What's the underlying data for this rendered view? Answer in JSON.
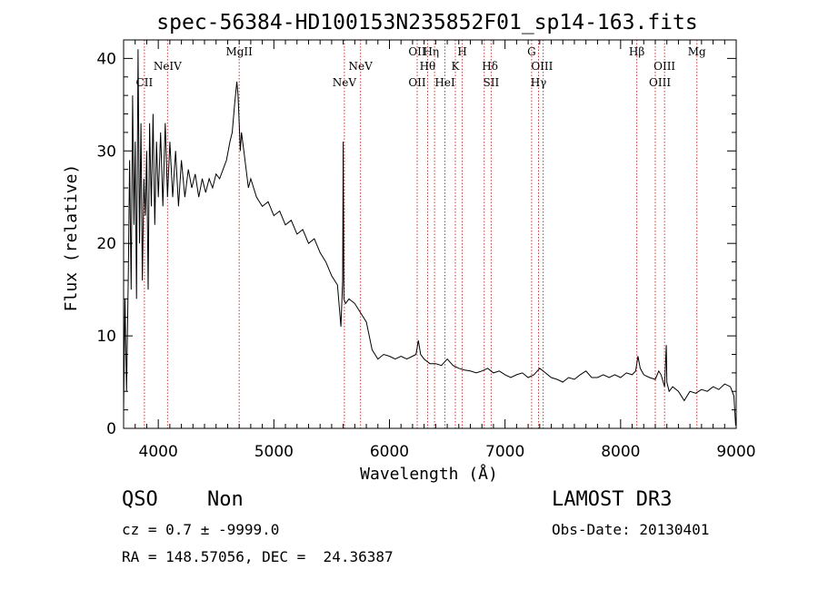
{
  "chart_data": {
    "type": "line",
    "title": "spec-56384-HD100153N235852F01_sp14-163.fits",
    "xlabel": "Wavelength (Å)",
    "ylabel": "Flux (relative)",
    "xlim": [
      3700,
      9000
    ],
    "ylim": [
      0,
      42
    ],
    "x_ticks": [
      4000,
      5000,
      6000,
      7000,
      8000,
      9000
    ],
    "y_ticks": [
      0,
      10,
      20,
      30,
      40
    ],
    "grid": false,
    "series": [
      {
        "name": "spectrum",
        "x": [
          3700,
          3712,
          3725,
          3740,
          3752,
          3765,
          3778,
          3790,
          3800,
          3812,
          3825,
          3838,
          3850,
          3862,
          3875,
          3888,
          3900,
          3912,
          3925,
          3940,
          3955,
          3970,
          3985,
          4000,
          4020,
          4040,
          4060,
          4080,
          4100,
          4125,
          4150,
          4175,
          4200,
          4230,
          4260,
          4290,
          4320,
          4350,
          4380,
          4410,
          4440,
          4470,
          4500,
          4530,
          4560,
          4590,
          4620,
          4640,
          4660,
          4680,
          4690,
          4700,
          4710,
          4720,
          4740,
          4760,
          4780,
          4800,
          4850,
          4900,
          4950,
          5000,
          5050,
          5100,
          5150,
          5200,
          5250,
          5300,
          5350,
          5400,
          5450,
          5500,
          5550,
          5580,
          5595,
          5600,
          5605,
          5620,
          5650,
          5700,
          5750,
          5800,
          5850,
          5900,
          5950,
          6000,
          6050,
          6100,
          6150,
          6200,
          6230,
          6250,
          6270,
          6300,
          6350,
          6400,
          6450,
          6500,
          6550,
          6600,
          6650,
          6700,
          6750,
          6800,
          6850,
          6900,
          6950,
          7000,
          7050,
          7100,
          7150,
          7200,
          7250,
          7300,
          7350,
          7400,
          7450,
          7500,
          7550,
          7600,
          7650,
          7700,
          7750,
          7800,
          7850,
          7900,
          7950,
          8000,
          8050,
          8100,
          8130,
          8150,
          8170,
          8200,
          8250,
          8300,
          8330,
          8350,
          8380,
          8395,
          8400,
          8420,
          8450,
          8500,
          8550,
          8600,
          8650,
          8700,
          8750,
          8800,
          8850,
          8900,
          8950,
          8980,
          8995
        ],
        "y": [
          2,
          14,
          4,
          16,
          29,
          15,
          36,
          22,
          31,
          14,
          41,
          20,
          33,
          16,
          27,
          23,
          30,
          15,
          33,
          24,
          34,
          22,
          31,
          25,
          32,
          24,
          33,
          25,
          31,
          25,
          30,
          24,
          29,
          25,
          28,
          26,
          27.5,
          25,
          27,
          25.5,
          27,
          26,
          27.5,
          27,
          28,
          29,
          31,
          32,
          35,
          37.5,
          36,
          33,
          30,
          32,
          30,
          28,
          26,
          27,
          25,
          24,
          24.5,
          23,
          23.5,
          22,
          22.5,
          21,
          21.5,
          20,
          20.5,
          19,
          18,
          16.5,
          15.5,
          11,
          16,
          31,
          14,
          13.5,
          14,
          13.5,
          12.5,
          11.5,
          8.5,
          7.5,
          8,
          7.8,
          7.5,
          7.8,
          7.5,
          7.8,
          8,
          9.5,
          8,
          7.5,
          7,
          7,
          6.8,
          7.5,
          6.8,
          6.5,
          6.3,
          6.2,
          6,
          6.2,
          6.5,
          6,
          6.2,
          5.8,
          5.5,
          5.8,
          6,
          5.5,
          5.8,
          6.5,
          6,
          5.5,
          5.3,
          5,
          5.5,
          5.3,
          5.8,
          6.2,
          5.5,
          5.5,
          5.8,
          5.5,
          5.8,
          5.5,
          6,
          5.8,
          6.2,
          7.8,
          6.5,
          5.8,
          5.5,
          5.3,
          6.2,
          5.8,
          4.5,
          9,
          5,
          4,
          4.5,
          4,
          3,
          4,
          3.8,
          4.2,
          4,
          4.5,
          4.2,
          4.8,
          4.5,
          3.5,
          0.3
        ]
      }
    ],
    "spectral_lines": [
      {
        "label": "CII",
        "wavelength": 3880,
        "row": "lower",
        "sub": ""
      },
      {
        "label": "NeIV",
        "wavelength": 4080,
        "row": "upper",
        "sub": ""
      },
      {
        "label": "MgII",
        "wavelength": 4700,
        "row": "top",
        "sub": ""
      },
      {
        "label": "NeV",
        "wavelength": 5610,
        "row": "lower",
        "sub": ""
      },
      {
        "label": "NeV",
        "wavelength": 5750,
        "row": "upper",
        "sub": ""
      },
      {
        "label": "OII",
        "wavelength": 6240,
        "row": "top",
        "sub": ""
      },
      {
        "label": "OII",
        "wavelength": 6240,
        "row": "lower",
        "sub": ""
      },
      {
        "label": "Hη",
        "wavelength": 6360,
        "row": "top",
        "sub": ""
      },
      {
        "label": "Hθ",
        "wavelength": 6330,
        "row": "upper",
        "sub": ""
      },
      {
        "label": "HeI",
        "wavelength": 6480,
        "row": "lower",
        "sub": ""
      },
      {
        "label": "K",
        "wavelength": 6570,
        "row": "upper",
        "sub": ""
      },
      {
        "label": "H",
        "wavelength": 6630,
        "row": "top",
        "sub": ""
      },
      {
        "label": "Hδ",
        "wavelength": 6870,
        "row": "upper",
        "sub": ""
      },
      {
        "label": "SII",
        "wavelength": 6880,
        "row": "lower",
        "sub": ""
      },
      {
        "label": "G",
        "wavelength": 7230,
        "row": "top",
        "sub": ""
      },
      {
        "label": "OIII",
        "wavelength": 7320,
        "row": "upper",
        "sub": ""
      },
      {
        "label": "Hγ",
        "wavelength": 7290,
        "row": "lower",
        "sub": ""
      },
      {
        "label": "Hβ",
        "wavelength": 8140,
        "row": "top",
        "sub": ""
      },
      {
        "label": "OIII",
        "wavelength": 8340,
        "row": "lower",
        "sub": ""
      },
      {
        "label": "OIII",
        "wavelength": 8380,
        "row": "upper",
        "sub": ""
      },
      {
        "label": "Mg",
        "wavelength": 8660,
        "row": "top",
        "sub": ""
      }
    ],
    "marker_lines": [
      3880,
      4080,
      4700,
      5610,
      5750,
      6240,
      6330,
      6390,
      6480,
      6570,
      6630,
      6820,
      6880,
      7230,
      7290,
      7330,
      8140,
      8300,
      8380,
      8660
    ],
    "colors": {
      "spectrum": "#000000",
      "marker": "#cc3333"
    }
  },
  "info": {
    "class": "QSO",
    "subclass": "Non",
    "survey": "LAMOST DR3",
    "cz": "cz = 0.7 ± -9999.0",
    "obs_date": "Obs-Date: 20130401",
    "coords": "RA = 148.57056, DEC =  24.36387"
  }
}
